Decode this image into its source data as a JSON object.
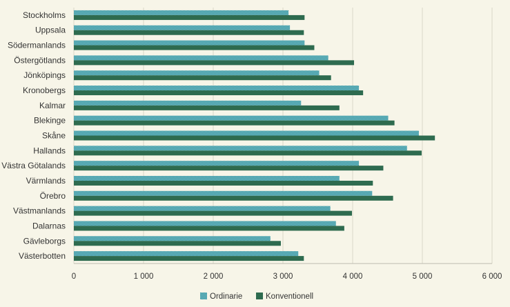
{
  "chart_data": {
    "type": "bar",
    "orientation": "horizontal",
    "categories": [
      "Stockholms",
      "Uppsala",
      "Södermanlands",
      "Östergötlands",
      "Jönköpings",
      "Kronobergs",
      "Kalmar",
      "Blekinge",
      "Skåne",
      "Hallands",
      "Västra Götalands",
      "Värmlands",
      "Örebro",
      "Västmanlands",
      "Dalarnas",
      "Gävleborgs",
      "Västerbotten"
    ],
    "series": [
      {
        "name": "Ordinarie",
        "color": "#3a9aa8",
        "pattern": "checkered",
        "values": [
          3080,
          3100,
          3310,
          3650,
          3520,
          4090,
          3260,
          4510,
          4950,
          4780,
          4090,
          3810,
          4280,
          3680,
          3760,
          2820,
          3220
        ]
      },
      {
        "name": "Konventionell",
        "color": "#2e6b4f",
        "values": [
          3310,
          3300,
          3450,
          4020,
          3690,
          4150,
          3810,
          4600,
          5180,
          4990,
          4440,
          4290,
          4580,
          3990,
          3880,
          2970,
          3300
        ]
      }
    ],
    "xticks": [
      0,
      1000,
      2000,
      3000,
      4000,
      5000,
      6000
    ],
    "xtick_labels": [
      "0",
      "1 000",
      "2 000",
      "3 000",
      "4 000",
      "5 000",
      "6 000"
    ],
    "xlim": [
      0,
      6000
    ],
    "title": "",
    "xlabel": "",
    "ylabel": "",
    "grid": "vertical",
    "legend_position": "bottom-center"
  }
}
